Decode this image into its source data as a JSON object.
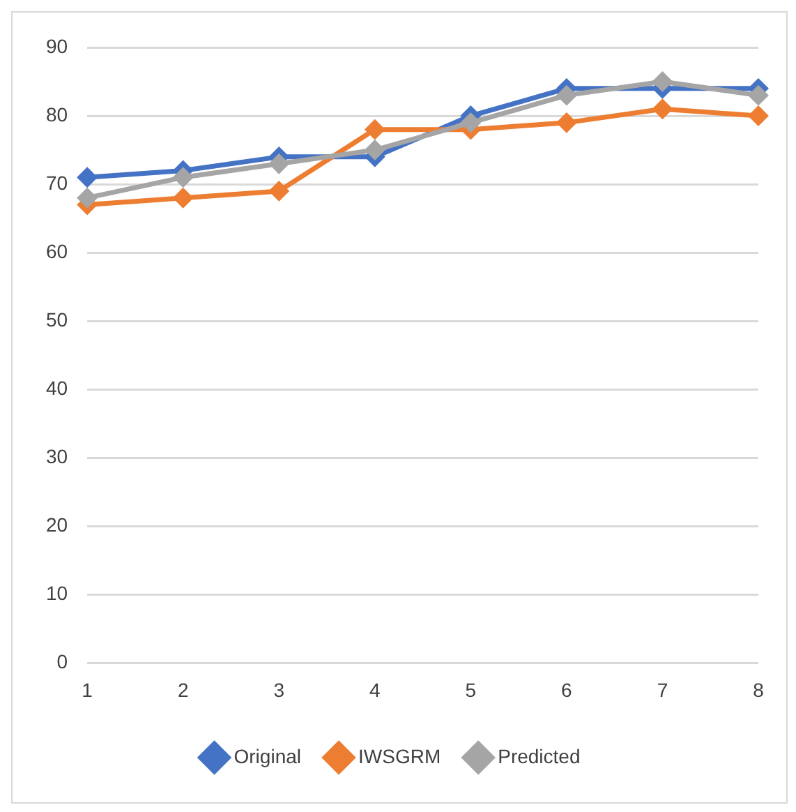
{
  "chart_data": {
    "type": "line",
    "categories": [
      "1",
      "2",
      "3",
      "4",
      "5",
      "6",
      "7",
      "8"
    ],
    "series": [
      {
        "name": "Original",
        "color": "#4472c4",
        "values": [
          71,
          72,
          74,
          74,
          80,
          84,
          84,
          84
        ]
      },
      {
        "name": "IWSGRM",
        "color": "#ed7d31",
        "values": [
          67,
          68,
          69,
          78,
          78,
          79,
          81,
          80
        ]
      },
      {
        "name": "Predicted",
        "color": "#a5a5a5",
        "values": [
          68,
          71,
          73,
          75,
          79,
          83,
          85,
          83
        ]
      }
    ],
    "ylim": [
      0,
      90
    ],
    "yticks": [
      0,
      10,
      20,
      30,
      40,
      50,
      60,
      70,
      80,
      90
    ],
    "grid": "y",
    "legend": "bottom",
    "marker": "diamond",
    "line_style": "solid"
  }
}
